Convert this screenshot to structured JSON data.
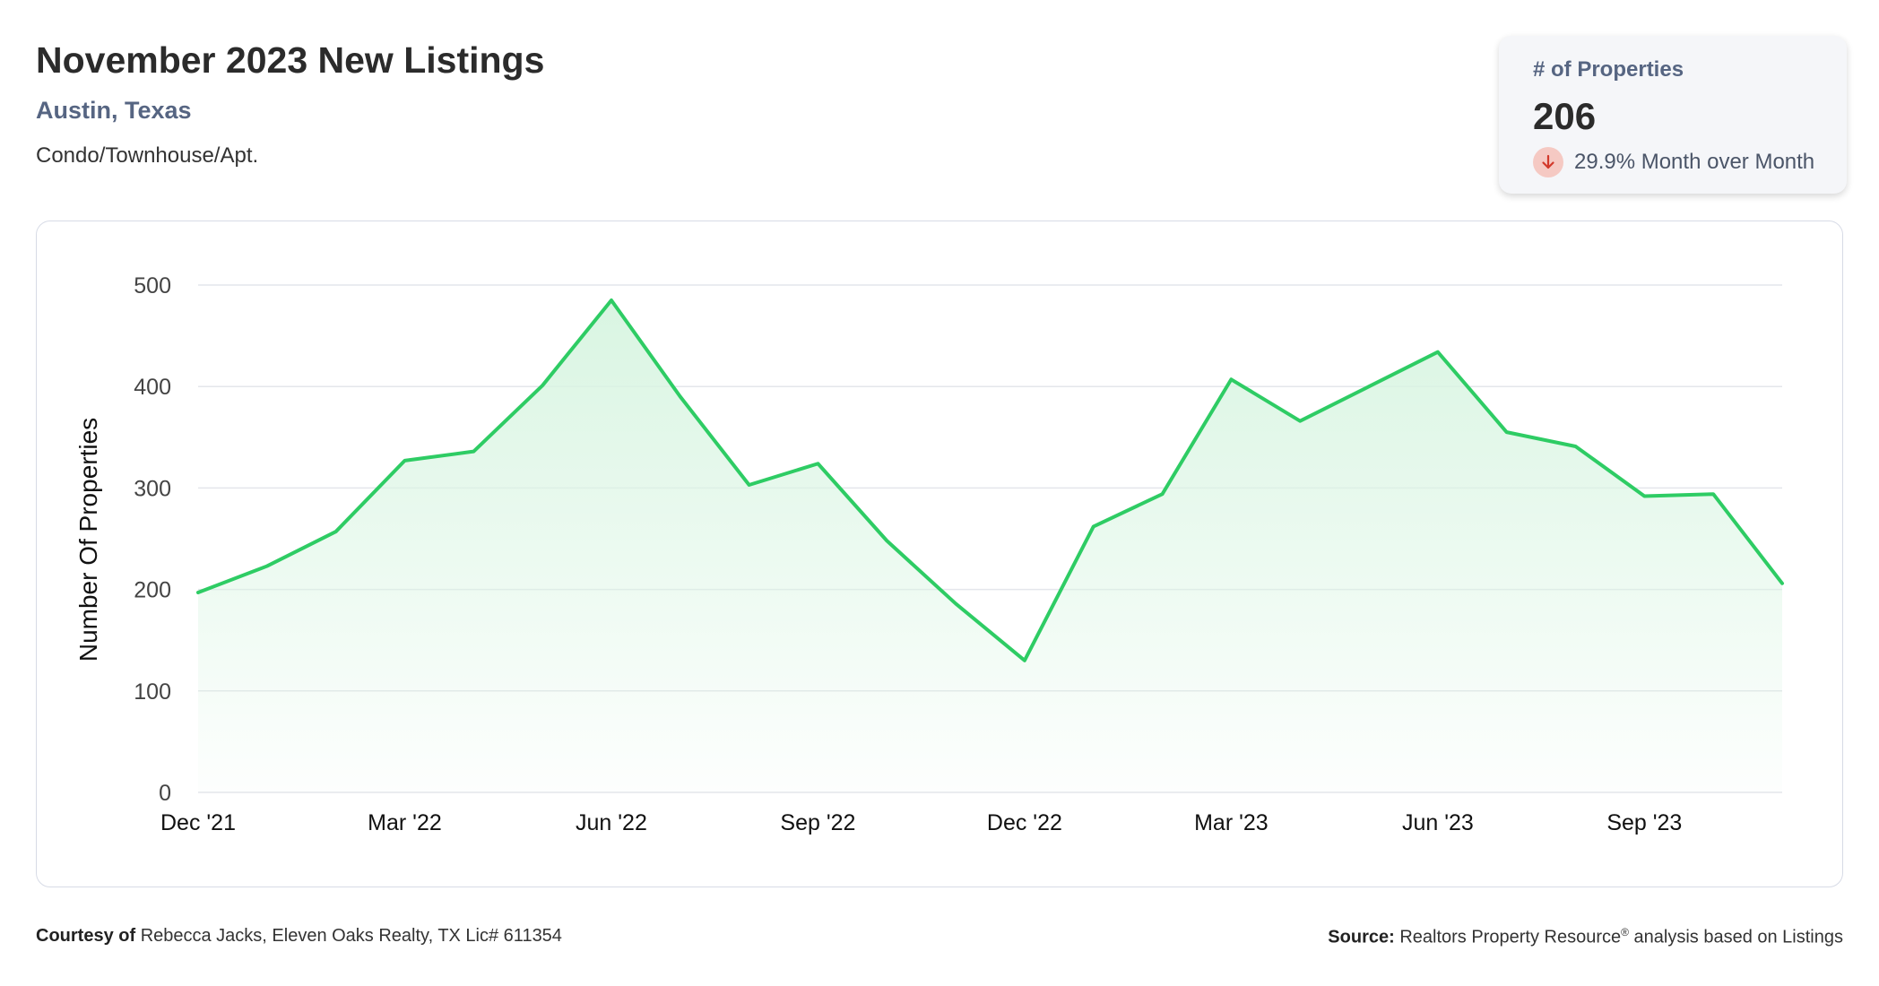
{
  "header": {
    "title": "November 2023 New Listings",
    "location": "Austin, Texas",
    "property_type": "Condo/Townhouse/Apt."
  },
  "stat_card": {
    "label": "# of Properties",
    "value": "206",
    "change_text": "29.9% Month over Month",
    "direction_icon": "arrow-down-icon",
    "badge_color": "#f5c9c3",
    "arrow_color": "#d2392b"
  },
  "colors": {
    "line": "#2ecc64",
    "area_top": "#d9f5e2",
    "grid": "#e4e6eb",
    "tick_text": "#444444",
    "axis_label_text": "#111111"
  },
  "chart_data": {
    "type": "area",
    "title": "",
    "xlabel": "",
    "ylabel": "Number Of Properties",
    "ylim": [
      0,
      500
    ],
    "yticks": [
      "0",
      "100",
      "200",
      "300",
      "400",
      "500"
    ],
    "x": [
      "Dec '21",
      "Jan '22",
      "Feb '22",
      "Mar '22",
      "Apr '22",
      "May '22",
      "Jun '22",
      "Jul '22",
      "Aug '22",
      "Sep '22",
      "Oct '22",
      "Nov '22",
      "Dec '22",
      "Jan '23",
      "Feb '23",
      "Mar '23",
      "Apr '23",
      "May '23",
      "Jun '23",
      "Jul '23",
      "Aug '23",
      "Sep '23",
      "Oct '23",
      "Nov '23"
    ],
    "xticks": [
      "Dec '21",
      "Mar '22",
      "Jun '22",
      "Sep '22",
      "Dec '22",
      "Mar '23",
      "Jun '23",
      "Sep '23"
    ],
    "series": [
      {
        "values": [
          197,
          223,
          257,
          327,
          336,
          401,
          485,
          390,
          303,
          324,
          248,
          186,
          130,
          262,
          294,
          407,
          366,
          400,
          434,
          355,
          341,
          292,
          294,
          206
        ]
      }
    ],
    "grid": true,
    "legend": "none"
  },
  "footer": {
    "courtesy_label": "Courtesy of",
    "courtesy_text": "Rebecca Jacks, Eleven Oaks Realty, TX Lic# 611354",
    "source_label": "Source:",
    "source_name": "Realtors Property Resource",
    "source_mark": "®",
    "source_text": "analysis based on Listings"
  }
}
